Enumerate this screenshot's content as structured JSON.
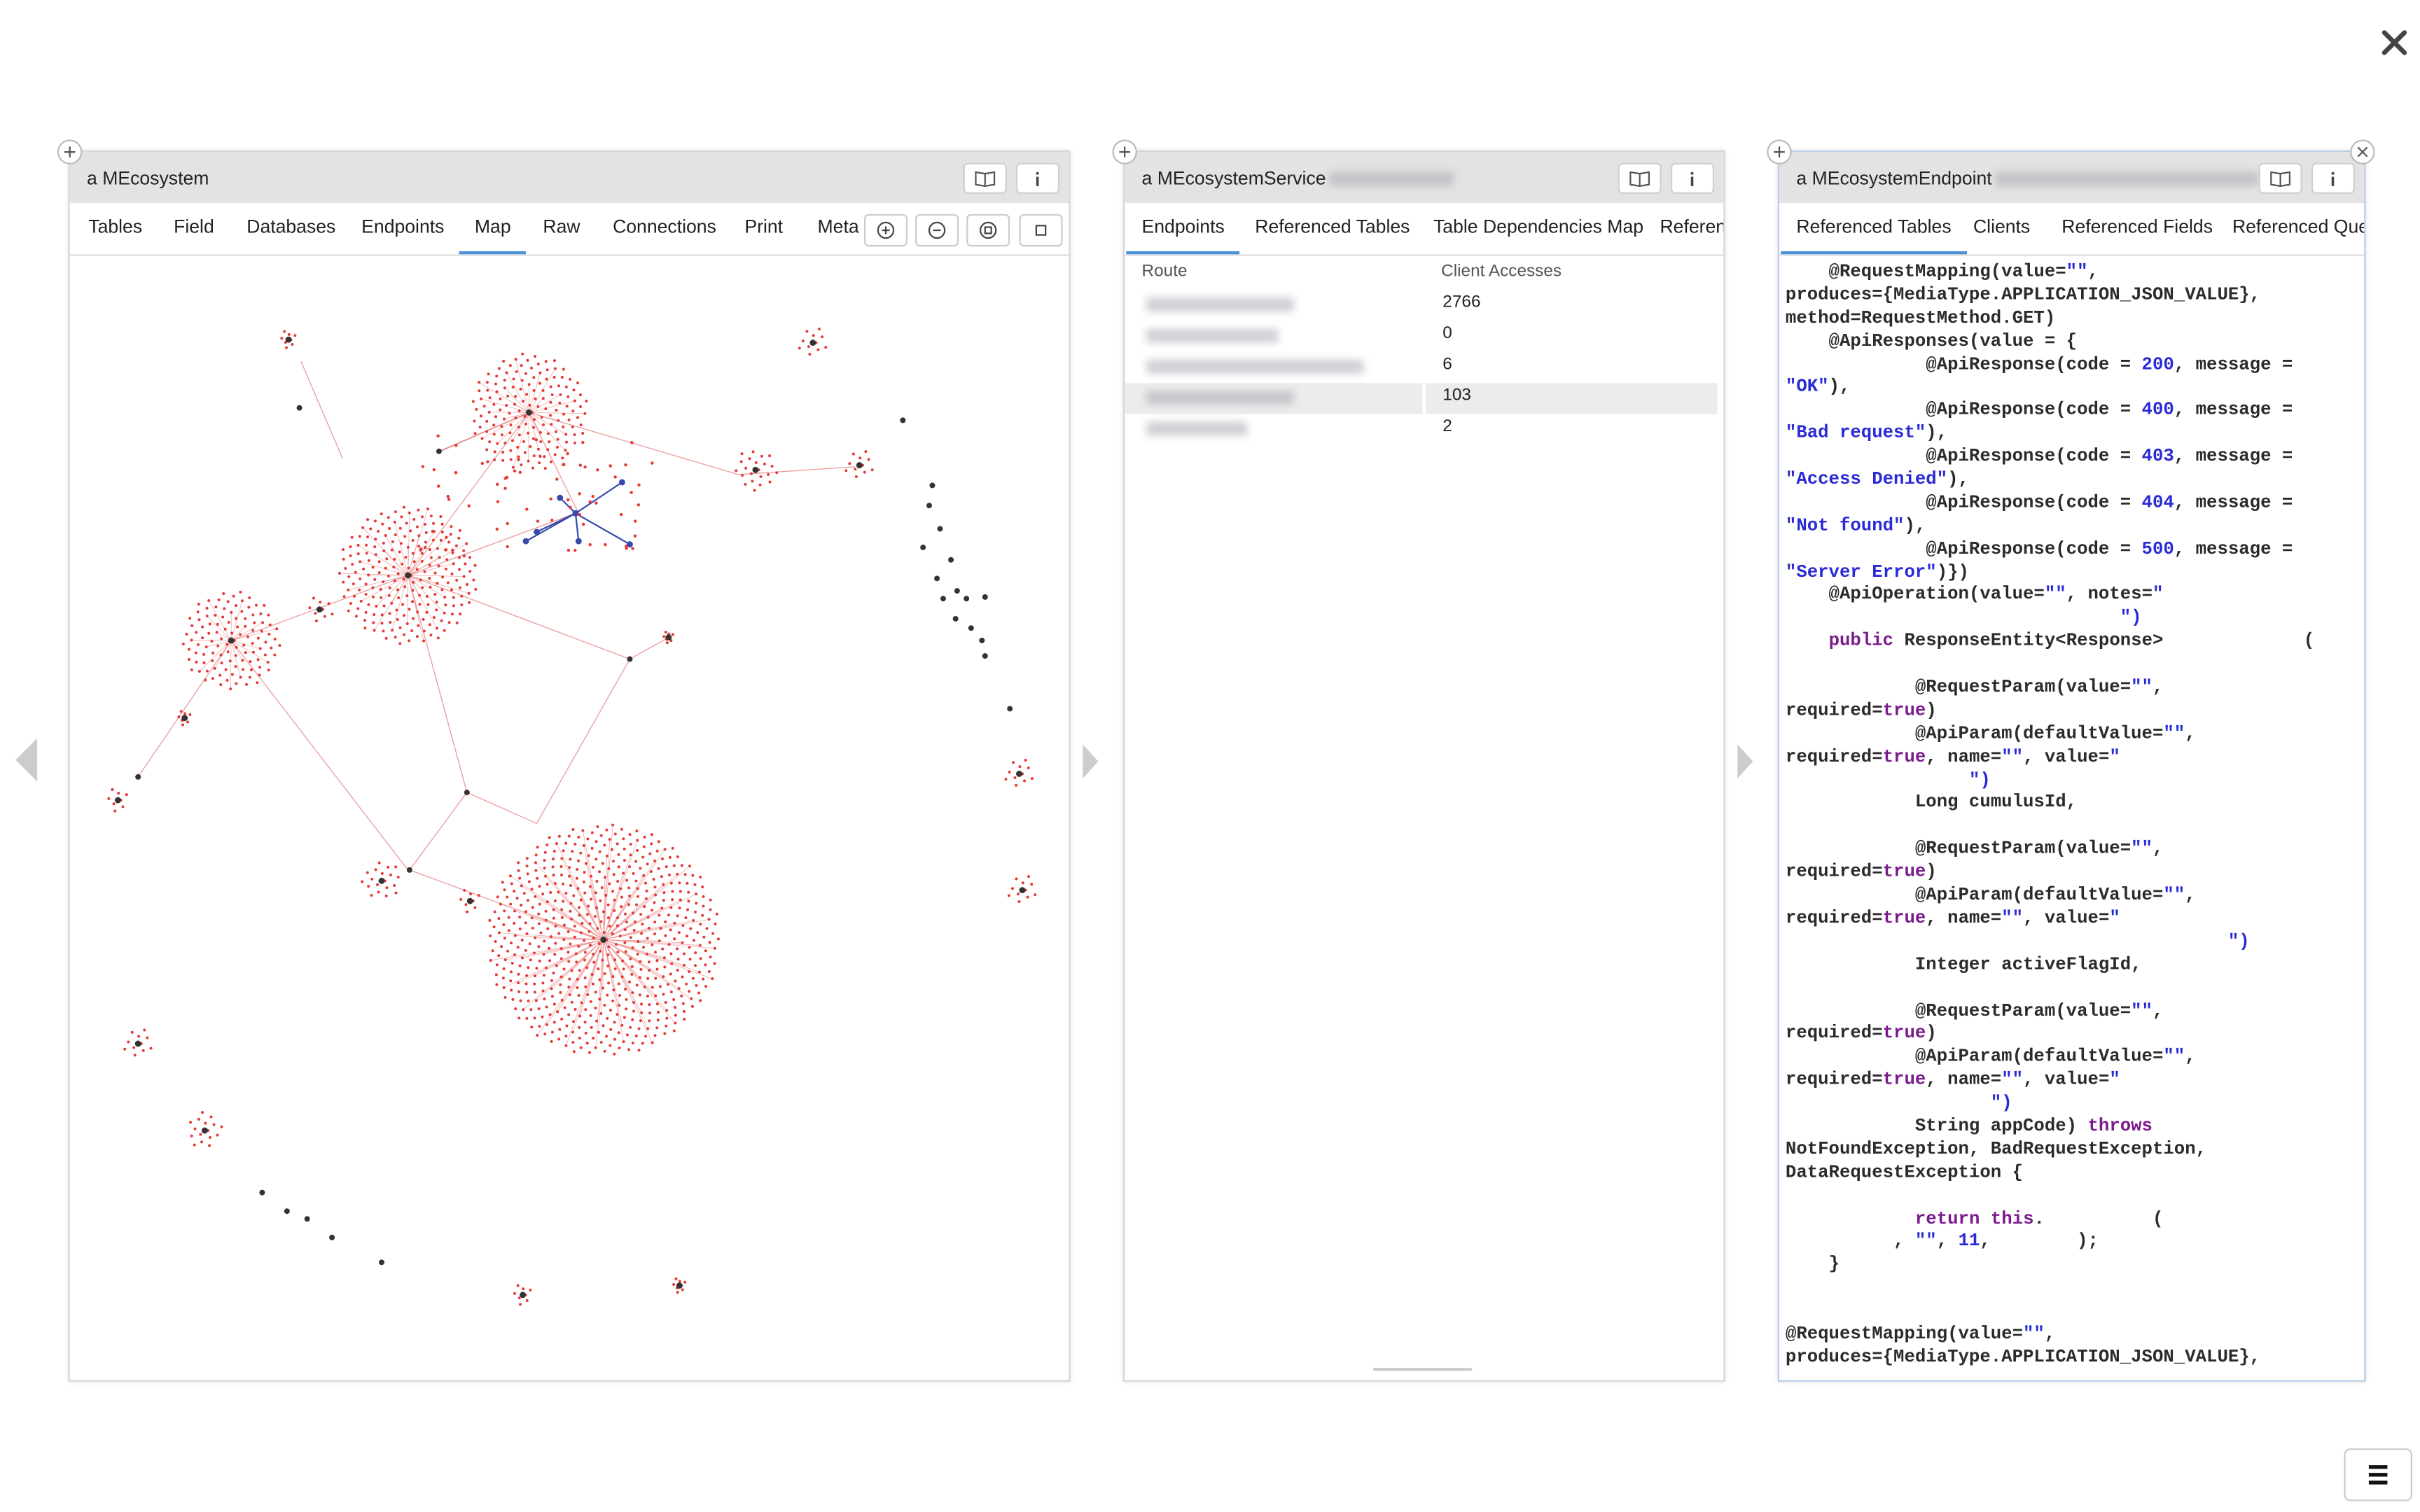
{
  "panels": [
    {
      "title": "a MEcosystem",
      "tabs": [
        "Tables",
        "Field",
        "Databases",
        "Endpoints",
        "Map",
        "Raw",
        "Connections",
        "Print",
        "Meta"
      ],
      "active_tab": 4
    },
    {
      "title": "a MEcosystemService",
      "tabs": [
        "Endpoints",
        "Referenced Tables",
        "Table Dependencies Map",
        "Referenc"
      ],
      "active_tab": 0,
      "table": {
        "columns": [
          "Route",
          "Client Accesses"
        ],
        "client_accesses": [
          2766,
          0,
          6,
          103,
          2
        ],
        "highlighted_row": 3
      }
    },
    {
      "title": "a MEcosystemEndpoint",
      "tabs": [
        "Referenced Tables",
        "Clients",
        "Referenced Fields",
        "Referenced Quer"
      ],
      "active_tab": 0,
      "code_blocks": [
        [
          "    @RequestMapping(value=\"\",",
          "produces={MediaType.APPLICATION_JSON_VALUE},",
          "method=RequestMethod.GET)",
          "    @ApiResponses(value = {",
          "             @ApiResponse(code = 200, message =",
          "\"OK\"),",
          "             @ApiResponse(code = 400, message =",
          "\"Bad request\"),",
          "             @ApiResponse(code = 403, message =",
          "\"Access Denied\"),",
          "             @ApiResponse(code = 404, message =",
          "\"Not found\"),",
          "             @ApiResponse(code = 500, message =",
          "\"Server Error\")})",
          "    @ApiOperation(value=\"\", notes=\"",
          "                               \")",
          "    public ResponseEntity<Response>             ("
        ],
        [
          "            @RequestParam(value=\"\",",
          "required=true)",
          "            @ApiParam(defaultValue=\"\",",
          "required=true, name=\"\", value=\"",
          "                 \")",
          "            Long cumulusId,"
        ],
        [
          "            @RequestParam(value=\"\",",
          "required=true)",
          "            @ApiParam(defaultValue=\"\",",
          "required=true, name=\"\", value=\"",
          "                                         \")",
          "            Integer activeFlagId,"
        ],
        [
          "            @RequestParam(value=\"\",",
          "required=true)",
          "            @ApiParam(defaultValue=\"\",",
          "required=true, name=\"\", value=\"",
          "                   \")",
          "            String appCode) throws",
          "NotFoundException, BadRequestException,",
          "DataRequestException {"
        ],
        [
          "            return this.          (",
          "          , \"\", 11,        );",
          "    }"
        ],
        [
          "@RequestMapping(value=\"\",",
          "produces={MediaType.APPLICATION_JSON_VALUE},"
        ]
      ]
    }
  ]
}
